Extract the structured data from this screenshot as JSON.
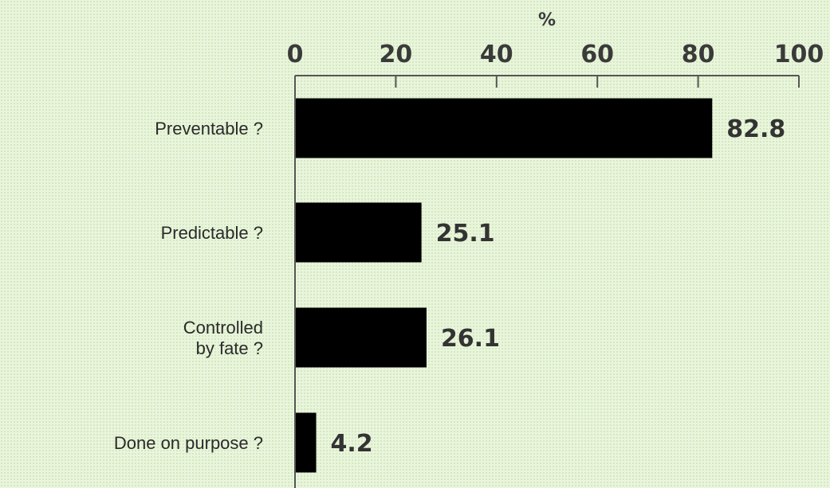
{
  "chart_data": {
    "type": "bar",
    "orientation": "horizontal",
    "xlabel": "%",
    "ylabel": "",
    "xlim": [
      0,
      100
    ],
    "xticks": [
      "0",
      "20",
      "40",
      "60",
      "80",
      "100"
    ],
    "categories": [
      [
        "Preventable ?"
      ],
      [
        "Predictable ?"
      ],
      [
        "Controlled",
        "by fate ?"
      ],
      [
        "Done on purpose ?"
      ]
    ],
    "values": [
      82.8,
      25.1,
      26.1,
      4.2
    ],
    "value_labels": [
      "82.8",
      "25.1",
      "26.1",
      "4.2"
    ],
    "bar_color": "#000000",
    "axis_position": "top",
    "grid": false,
    "legend": "none"
  }
}
